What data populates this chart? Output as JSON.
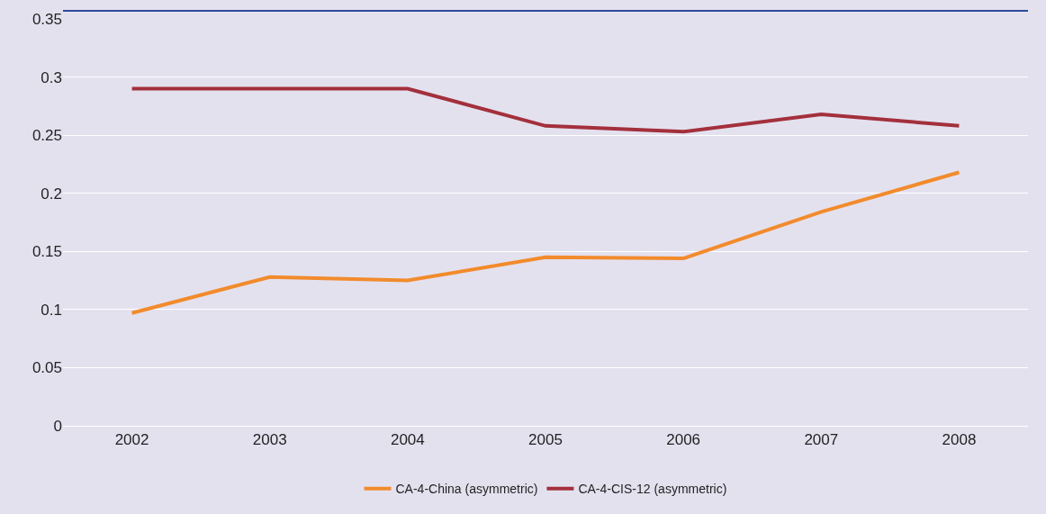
{
  "chart_data": {
    "type": "line",
    "categories": [
      "2002",
      "2003",
      "2004",
      "2005",
      "2006",
      "2007",
      "2008"
    ],
    "series": [
      {
        "name": "CA-4-China (asymmetric)",
        "color": "#f28b2c",
        "values": [
          0.097,
          0.128,
          0.125,
          0.145,
          0.144,
          0.184,
          0.218
        ]
      },
      {
        "name": "CA-4-CIS-12 (asymmetric)",
        "color": "#a3303c",
        "values": [
          0.29,
          0.29,
          0.29,
          0.258,
          0.253,
          0.268,
          0.258
        ]
      }
    ],
    "ylim": [
      0,
      0.35
    ],
    "yticks": [
      0,
      0.05,
      0.1,
      0.15,
      0.2,
      0.25,
      0.3,
      0.35
    ],
    "grid": "y",
    "legend": "bottom",
    "marker": "none",
    "line_style": "solid"
  }
}
